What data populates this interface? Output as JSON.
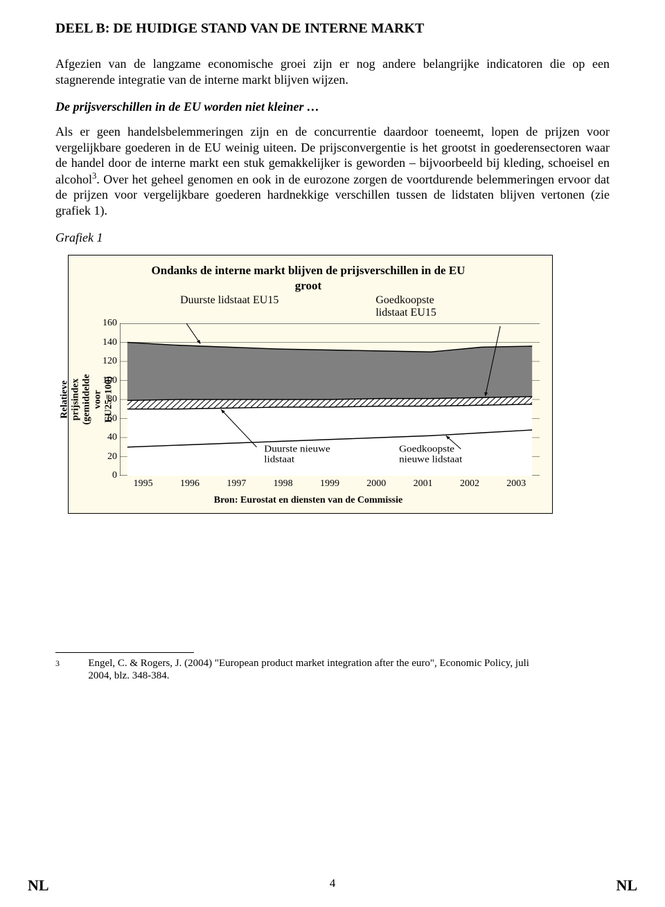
{
  "doc": {
    "title": "DEEL B: DE HUIDIGE STAND VAN DE INTERNE MARKT",
    "para1": "Afgezien van de langzame economische groei zijn er nog andere belangrijke indicatoren die op een stagnerende integratie van de interne markt blijven wijzen.",
    "subhead": "De prijsverschillen in de EU worden niet kleiner …",
    "para2_a": "Als er geen handelsbelemmeringen zijn en de concurrentie daardoor toeneemt, lopen de prijzen voor vergelijkbare goederen in de EU weinig uiteen. De prijsconvergentie is het grootst in goederensectoren waar de handel door de interne markt een stuk gemakkelijker is geworden – bijvoorbeeld bij kleding, schoeisel en alcohol",
    "para2_sup": "3",
    "para2_b": ". Over het geheel genomen en ook in de eurozone zorgen de voortdurende belemmeringen ervoor dat de prijzen voor vergelijkbare goederen hardnekkige verschillen tussen de lidstaten blijven vertonen (zie grafiek 1).",
    "caption": "Grafiek 1"
  },
  "chart": {
    "type": "area",
    "title_line1": "Ondanks de interne markt blijven de prijsverschillen in de EU",
    "title_line2": "groot",
    "annot_top_left": "Duurste lidstaat EU15",
    "annot_top_right": "Goedkoopste\nlidstaat EU15",
    "annot_mid_left": "Duurste nieuwe\nlidstaat",
    "annot_mid_right": "Goedkoopste\nnieuwe lidstaat",
    "ylabel": "Relatieve prijsindex (gemiddelde\nvoor EU25=100)",
    "ylim": [
      0,
      160
    ],
    "ytick_step": 20,
    "yticks": [
      "0",
      "20",
      "40",
      "60",
      "80",
      "100",
      "120",
      "140",
      "160"
    ],
    "xticks": [
      "1995",
      "1996",
      "1997",
      "1998",
      "1999",
      "2000",
      "2001",
      "2002",
      "2003"
    ],
    "series": {
      "duurste_eu15": [
        140,
        137,
        135,
        133,
        132,
        131,
        130,
        135,
        136
      ],
      "goedkoopste_eu15": [
        79,
        80,
        80,
        80,
        80,
        81,
        81,
        82,
        83
      ],
      "duurste_nieuwe": [
        70,
        70,
        71,
        72,
        72,
        73,
        73,
        74,
        75
      ],
      "goedkoopste_nieuwe": [
        30,
        32,
        34,
        36,
        38,
        40,
        42,
        45,
        48
      ]
    },
    "colors": {
      "band_top": "#808080",
      "band_stripes_fg": "#000000",
      "band_stripes_bg": "#ffffff",
      "band_bottom": "#ffffff",
      "background": "#fffbea",
      "grid": "#000000",
      "line": "#000000"
    },
    "source": "Bron: Eurostat en diensten van de Commissie"
  },
  "footnote": {
    "num": "3",
    "text": "Engel, C. & Rogers, J. (2004) \"European product market integration after the euro\", Economic Policy, juli 2004, blz. 348-384."
  },
  "footer": {
    "left": "NL",
    "page": "4",
    "right": "NL"
  }
}
